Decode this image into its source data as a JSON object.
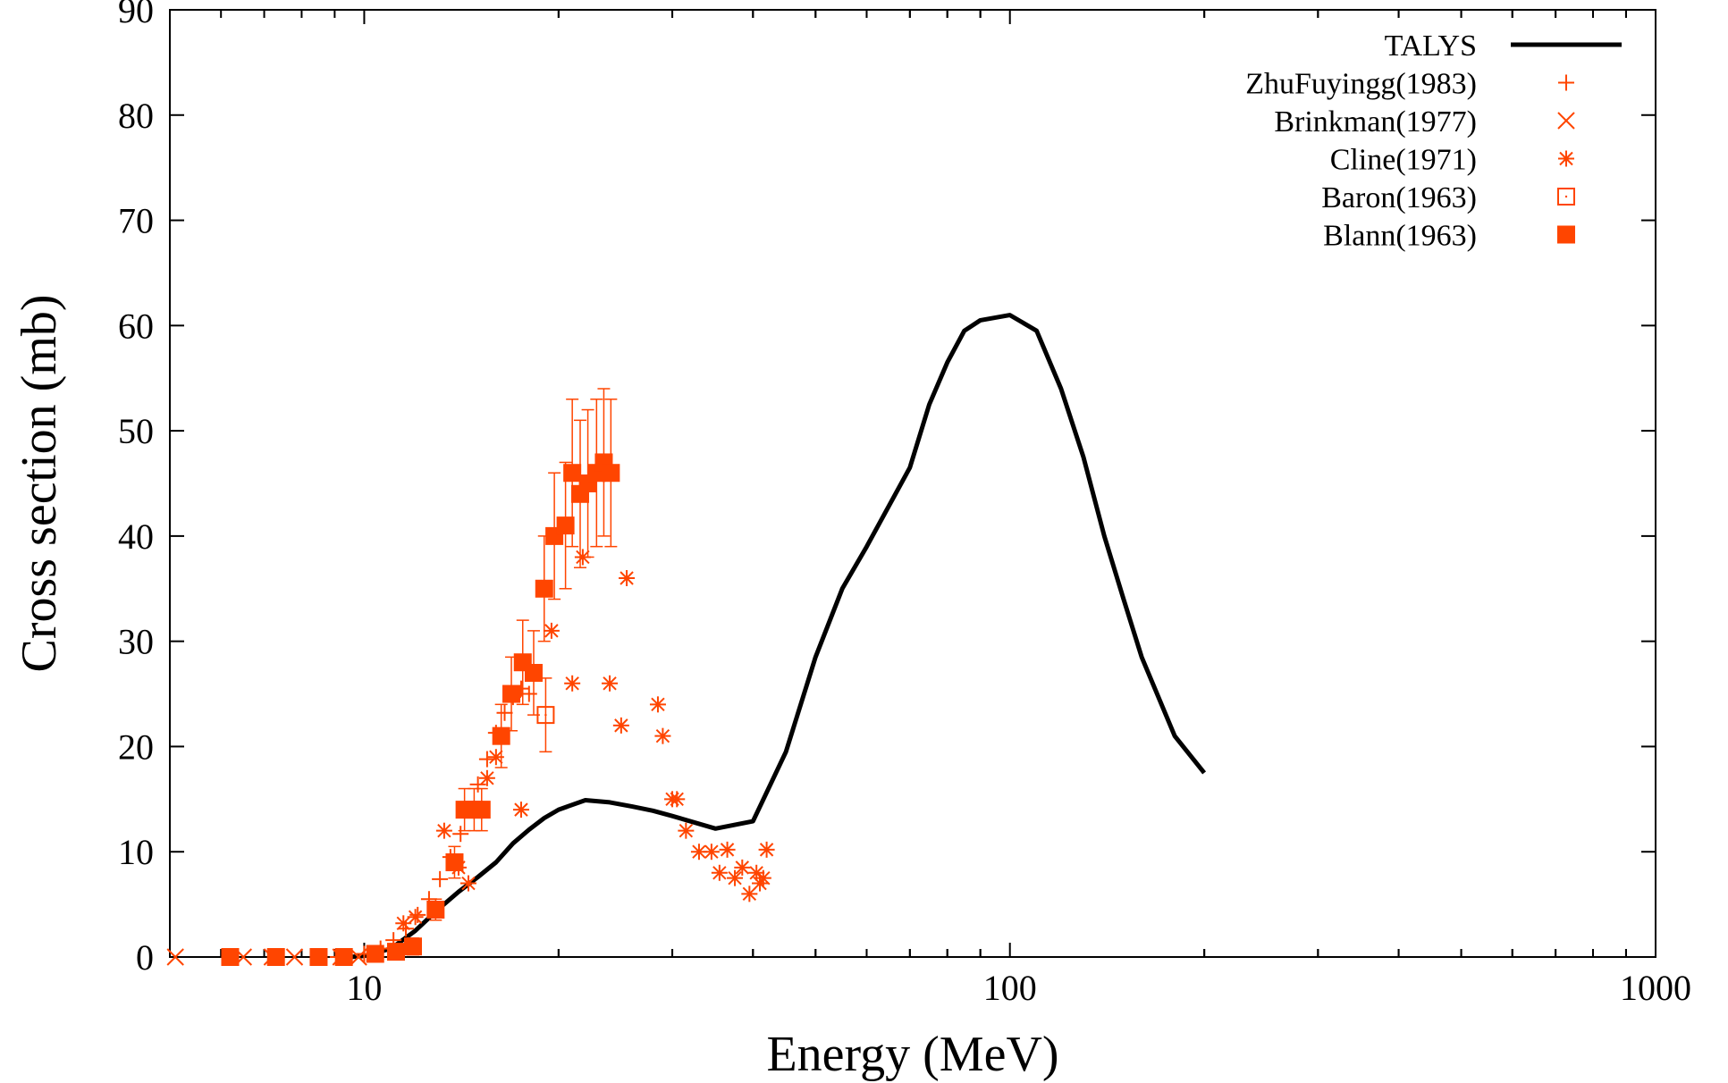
{
  "chart_data": {
    "type": "scatter",
    "xlabel": "Energy (MeV)",
    "ylabel": "Cross section (mb)",
    "xscale": "log",
    "xlim": [
      5,
      1000
    ],
    "ylim": [
      0,
      90
    ],
    "x_ticks": [
      10,
      100,
      1000
    ],
    "x_tick_labels": [
      "10",
      "100",
      "1000"
    ],
    "y_ticks": [
      0,
      10,
      20,
      30,
      40,
      50,
      60,
      70,
      80,
      90
    ],
    "y_tick_labels": [
      "0",
      "10",
      "20",
      "30",
      "40",
      "50",
      "60",
      "70",
      "80",
      "90"
    ],
    "grid": false,
    "legend_position": "top-right",
    "colors": {
      "talys": "#000000",
      "exp": "#ff4500"
    },
    "series": [
      {
        "name": "TALYS",
        "kind": "line",
        "x": [
          9.5,
          10,
          11,
          12,
          13,
          14,
          15,
          16,
          17,
          18,
          19,
          20,
          22,
          24,
          26,
          28,
          30,
          35,
          40,
          45,
          50,
          55,
          60,
          70,
          75,
          80,
          85,
          90,
          100,
          110,
          120,
          130,
          140,
          150,
          160,
          180,
          200
        ],
        "y": [
          0,
          0.1,
          0.8,
          2.5,
          4.5,
          6.2,
          7.6,
          9,
          10.8,
          12.1,
          13.2,
          14.0,
          14.9,
          14.7,
          14.3,
          13.9,
          13.4,
          12.2,
          12.9,
          19.5,
          28.5,
          35.0,
          39.0,
          46.5,
          52.5,
          56.5,
          59.5,
          60.5,
          61.0,
          59.5,
          54.0,
          47.5,
          40.0,
          34.0,
          28.5,
          21.0,
          17.5
        ]
      },
      {
        "name": "ZhuFuyingg(1983)",
        "marker": "plus",
        "x": [
          9.1,
          10.0,
          10.6,
          11.1,
          11.6,
          12.1,
          12.6,
          13.1,
          13.6,
          14.1,
          14.5,
          15.0,
          15.5,
          16.0,
          16.5,
          17.0,
          17.5,
          18.0
        ],
        "y": [
          0,
          0.3,
          0.8,
          1.6,
          2.7,
          4.0,
          5.5,
          7.4,
          9.5,
          11.7,
          14.0,
          16.4,
          18.8,
          21.3,
          23.2,
          24.7,
          25.5,
          25.0
        ]
      },
      {
        "name": "Brinkman(1977)",
        "marker": "cross",
        "x": [
          5.1,
          6.5,
          7.2,
          7.8,
          8.5,
          9.2,
          9.8
        ],
        "y": [
          0,
          0,
          0,
          0,
          0,
          0,
          0
        ]
      },
      {
        "name": "Cline(1971)",
        "marker": "star",
        "x": [
          11.5,
          12.0,
          13.3,
          14.0,
          14.5,
          15.5,
          16.0,
          17.5,
          19.5,
          21.0,
          21.8,
          24.0,
          25.0,
          25.5,
          28.5,
          29.0,
          30.0,
          30.5,
          31.5,
          33.0,
          34.5,
          35.5,
          36.5,
          37.5,
          38.5,
          39.5,
          40.5,
          41.0,
          41.5,
          42.0
        ],
        "y": [
          3.2,
          3.8,
          12.0,
          8.5,
          7.0,
          17.0,
          19.0,
          14.0,
          31.0,
          26.0,
          38.0,
          26.0,
          22.0,
          36.0,
          24.0,
          21.0,
          15.0,
          15.0,
          12.0,
          10.0,
          10.0,
          8.0,
          10.2,
          7.5,
          8.5,
          6.0,
          8.0,
          7.0,
          7.5,
          10.2
        ]
      },
      {
        "name": "Baron(1963)",
        "marker": "open-square",
        "x": [
          19.1
        ],
        "y": [
          23.0
        ],
        "yerr": [
          3.5
        ]
      },
      {
        "name": "Blann(1963)",
        "marker": "filled-square",
        "x": [
          6.2,
          7.3,
          8.5,
          9.3,
          10.4,
          11.2,
          11.9,
          12.9,
          13.8,
          14.3,
          14.8,
          15.2,
          16.3,
          16.9,
          17.6,
          18.3,
          19.0,
          19.7,
          20.5,
          21.0,
          21.6,
          22.2,
          22.9,
          23.5,
          24.1
        ],
        "y": [
          0,
          0,
          0,
          0,
          0.3,
          0.5,
          1.0,
          4.5,
          9.0,
          14.0,
          14.0,
          14.0,
          21.0,
          25.0,
          28.0,
          27.0,
          35.0,
          40.0,
          41.0,
          46.0,
          44.0,
          45.0,
          46.0,
          47.0,
          46.0
        ],
        "yerr": [
          0.3,
          0.3,
          0.3,
          0.3,
          0.5,
          0.6,
          0.8,
          1.0,
          1.5,
          2.0,
          2.0,
          2.0,
          3.0,
          3.5,
          4.0,
          4.0,
          5.0,
          6.0,
          6.0,
          7.0,
          7.0,
          7.0,
          7.0,
          7.0,
          7.0
        ]
      }
    ]
  }
}
